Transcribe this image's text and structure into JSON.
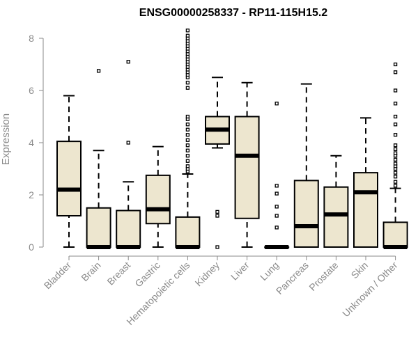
{
  "chart_data": {
    "type": "boxplot",
    "title": "ENSG00000258337 - RP11-115H15.2",
    "ylabel": "Expression",
    "xlabel": "",
    "ylim": [
      0,
      8
    ],
    "yticks": [
      0,
      2,
      4,
      6,
      8
    ],
    "box_fill": "#ede6cf",
    "categories": [
      "Bladder",
      "Brain",
      "Breast",
      "Gastric",
      "Hematopoietic cells",
      "Kidney",
      "Liver",
      "Lung",
      "Pancreas",
      "Prostate",
      "Skin",
      "Unknown / Other"
    ],
    "boxes": [
      {
        "category": "Bladder",
        "whisker_low": 0,
        "q1": 1.2,
        "median": 2.2,
        "q3": 4.05,
        "whisker_high": 5.8,
        "outliers": []
      },
      {
        "category": "Brain",
        "whisker_low": 0,
        "q1": 0,
        "median": 0,
        "q3": 1.5,
        "whisker_high": 3.7,
        "outliers": [
          6.75
        ]
      },
      {
        "category": "Breast",
        "whisker_low": 0,
        "q1": 0,
        "median": 0,
        "q3": 1.4,
        "whisker_high": 2.5,
        "outliers": [
          4.0,
          7.1
        ]
      },
      {
        "category": "Gastric",
        "whisker_low": 0,
        "q1": 0.9,
        "median": 1.45,
        "q3": 2.75,
        "whisker_high": 3.85,
        "outliers": []
      },
      {
        "category": "Hematopoietic cells",
        "whisker_low": 0,
        "q1": 0,
        "median": 0,
        "q3": 1.15,
        "whisker_high": 2.8,
        "outliers": [
          2.9,
          3.0,
          3.1,
          3.3,
          3.5,
          3.7,
          3.9,
          4.1,
          4.3,
          4.5,
          4.7,
          4.9,
          5.0,
          6.1,
          6.3,
          6.5,
          6.6,
          6.7,
          6.8,
          6.9,
          7.0,
          7.1,
          7.2,
          7.3,
          7.4,
          7.5,
          7.6,
          7.7,
          7.8,
          7.9,
          8.0,
          8.1,
          8.3
        ]
      },
      {
        "category": "Kidney",
        "whisker_low": 3.8,
        "q1": 3.95,
        "median": 4.5,
        "q3": 5.0,
        "whisker_high": 6.5,
        "outliers": [
          0,
          1.2,
          1.35
        ]
      },
      {
        "category": "Liver",
        "whisker_low": 0,
        "q1": 1.1,
        "median": 3.5,
        "q3": 5.0,
        "whisker_high": 6.3,
        "outliers": []
      },
      {
        "category": "Lung",
        "whisker_low": 0,
        "q1": 0,
        "median": 0,
        "q3": 0,
        "whisker_high": 0,
        "outliers": [
          0.75,
          1.2,
          1.55,
          2.05,
          2.35,
          5.5
        ]
      },
      {
        "category": "Pancreas",
        "whisker_low": 0,
        "q1": 0,
        "median": 0.8,
        "q3": 2.55,
        "whisker_high": 6.25,
        "outliers": []
      },
      {
        "category": "Prostate",
        "whisker_low": 0,
        "q1": 0,
        "median": 1.25,
        "q3": 2.3,
        "whisker_high": 3.5,
        "outliers": []
      },
      {
        "category": "Skin",
        "whisker_low": 0,
        "q1": 0,
        "median": 2.1,
        "q3": 2.85,
        "whisker_high": 4.95,
        "outliers": []
      },
      {
        "category": "Unknown / Other",
        "whisker_low": 0,
        "q1": 0,
        "median": 0,
        "q3": 0.95,
        "whisker_high": 2.25,
        "outliers": [
          2.35,
          2.5,
          2.7,
          2.85,
          3.0,
          3.1,
          3.2,
          3.35,
          3.5,
          3.6,
          3.75,
          3.9,
          4.3,
          4.7,
          5.0,
          5.5,
          6.0,
          6.7,
          7.0
        ]
      }
    ]
  }
}
